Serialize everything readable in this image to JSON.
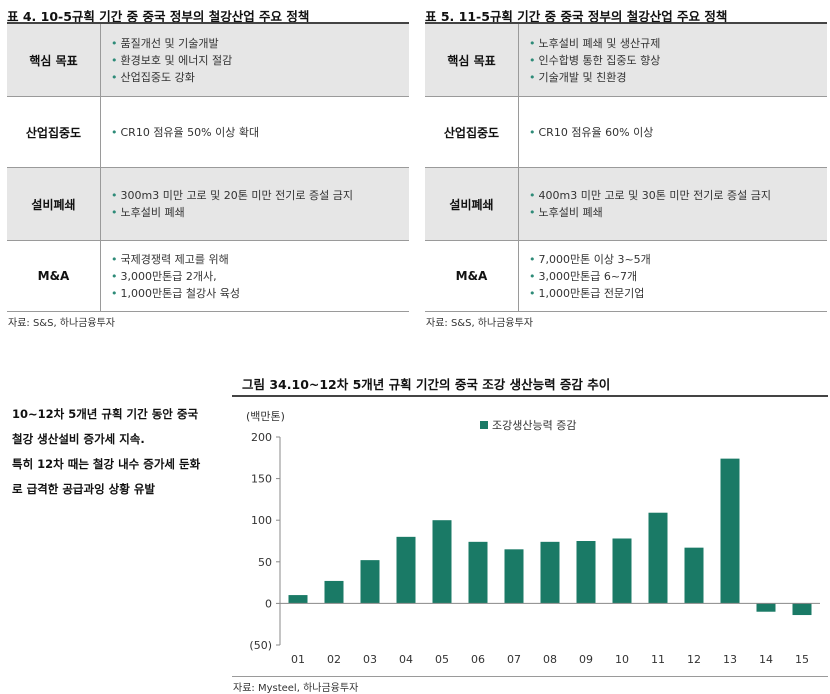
{
  "table_left": {
    "title": "표 4. 10-5규획 기간 중 중국 정부의 철강산업 주요 정책",
    "rows": [
      {
        "label": "핵심 목표",
        "items": [
          "품질개선 및 기술개발",
          "환경보호 및 에너지 절감",
          "산업집중도 강화"
        ]
      },
      {
        "label": "산업집중도",
        "items": [
          "CR10 점유율 50% 이상 확대"
        ]
      },
      {
        "label": "설비폐쇄",
        "items": [
          "300m3 미만 고로 및 20톤 미만 전기로 증설 금지",
          "노후설비 폐쇄"
        ]
      },
      {
        "label": "M&A",
        "items": [
          "국제경쟁력 제고를 위해",
          "3,000만톤급 2개사,",
          "1,000만톤급 철강사 육성"
        ]
      }
    ],
    "source": "자료: S&S, 하나금융투자"
  },
  "table_right": {
    "title": "표 5. 11-5규획 기간 중 중국 정부의 철강산업 주요 정책",
    "rows": [
      {
        "label": "핵심 목표",
        "items": [
          "노후설비 폐쇄 및 생산규제",
          "인수합병 통한 집중도 향상",
          "기술개발 및 친환경"
        ]
      },
      {
        "label": "산업집중도",
        "items": [
          "CR10 점유율 60% 이상"
        ]
      },
      {
        "label": "설비폐쇄",
        "items": [
          "400m3 미만 고로 및 30톤 미만 전기로 증설 금지",
          "노후설비 폐쇄"
        ]
      },
      {
        "label": "M&A",
        "items": [
          "7,000만톤 이상 3~5개",
          "3,000만톤급 6~7개",
          "1,000만톤급 전문기업"
        ]
      }
    ],
    "source": "자료: S&S, 하나금융투자"
  },
  "side_text": {
    "lines": [
      "10~12차 5개년 규획 기간 동안 중국",
      "철강 생산설비 증가세 지속.",
      "특히 12차 때는 철강 내수 증가세 둔화",
      "로 급격한 공급과잉 상황 유발"
    ]
  },
  "chart_data": {
    "type": "bar",
    "title": "그림 34.10~12차 5개년 규획 기간의 중국 조강 생산능력 증감 추이",
    "ylabel": "(백만톤)",
    "categories": [
      "01",
      "02",
      "03",
      "04",
      "05",
      "06",
      "07",
      "08",
      "09",
      "10",
      "11",
      "12",
      "13",
      "14",
      "15"
    ],
    "series": [
      {
        "name": "조강생산능력 증감",
        "values": [
          10,
          27,
          52,
          80,
          100,
          74,
          65,
          74,
          75,
          78,
          109,
          67,
          174,
          -10,
          -14
        ]
      }
    ],
    "ylim": [
      -50,
      200
    ],
    "yticks": [
      -50,
      0,
      50,
      100,
      150,
      200
    ],
    "ytick_labels": [
      "(50)",
      "0",
      "50",
      "100",
      "150",
      "200"
    ],
    "bar_color": "#1a7a66",
    "legend_position": "top-center",
    "grid": false,
    "source": "자료: Mysteel, 하나금융투자"
  }
}
